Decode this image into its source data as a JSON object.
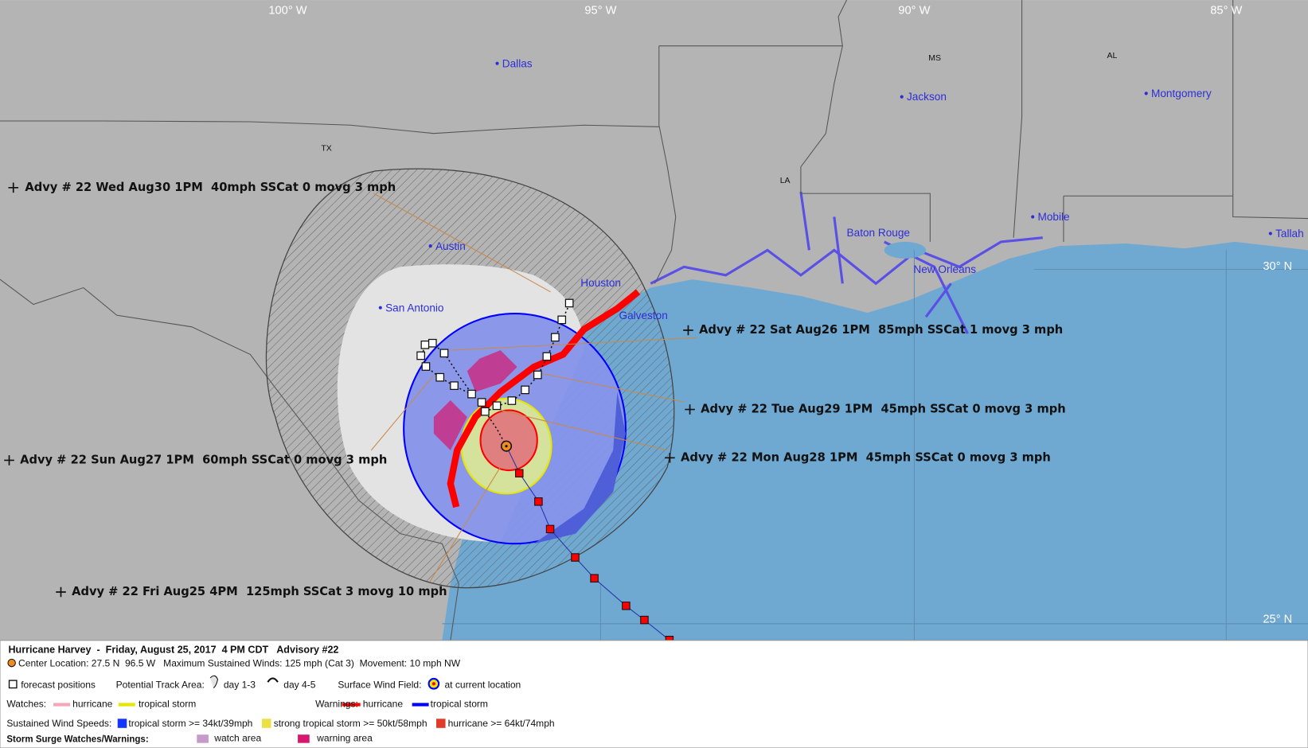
{
  "map": {
    "longitude_labels": [
      "100° W",
      "95° W",
      "90° W",
      "85° W"
    ],
    "latitude_labels": [
      "30° N",
      "25° N"
    ],
    "state_labels": [
      "TX",
      "LA",
      "MS",
      "AL"
    ],
    "cities": [
      "Dallas",
      "Austin",
      "San Antonio",
      "Houston",
      "Galveston",
      "Jackson",
      "Montgomery",
      "Baton Rouge",
      "New Orleans",
      "Mobile",
      "Tallah"
    ],
    "advisories": [
      "Advy # 22 Wed Aug30 1PM  40mph SSCat 0 movg 3 mph",
      "Advy # 22 Sat Aug26 1PM  85mph SSCat 1 movg 3 mph",
      "Advy # 22 Tue Aug29 1PM  45mph SSCat 0 movg 3 mph",
      "Advy # 22 Mon Aug28 1PM  45mph SSCat 0 movg 3 mph",
      "Advy # 22 Sun Aug27 1PM  60mph SSCat 0 movg 3 mph",
      "Advy # 22 Fri Aug25 4PM  125mph SSCat 3 movg 10 mph"
    ]
  },
  "legend": {
    "title": "Hurricane Harvey  -  Friday, August 25, 2017  4 PM CDT   Advisory #22",
    "center": "Center Location: 27.5 N  96.5 W   Maximum Sustained Winds: 125 mph (Cat 3)  Movement: 10 mph NW",
    "forecast_positions": "forecast positions",
    "potential_track_area": "Potential Track Area:",
    "day_1_3": "day 1-3",
    "day_4_5": "day 4-5",
    "surface_wind_field": "Surface Wind Field:",
    "at_current_location": "at current location",
    "watches": {
      "label": "Watches:",
      "hurricane": "hurricane",
      "tropical_storm": "tropical storm"
    },
    "warnings": {
      "label": "Warnings:",
      "hurricane": "hurricane",
      "tropical_storm": "tropical storm"
    },
    "wind_speeds": {
      "label": "Sustained Wind Speeds:",
      "tropical_storm": "tropical storm >= 34kt/39mph",
      "strong_tropical_storm": "strong tropical storm >= 50kt/58mph",
      "hurricane": "hurricane >= 64kt/74mph"
    },
    "surge": {
      "label": "Storm Surge Watches/Warnings:",
      "watch": "watch area",
      "warning": "warning area"
    }
  }
}
